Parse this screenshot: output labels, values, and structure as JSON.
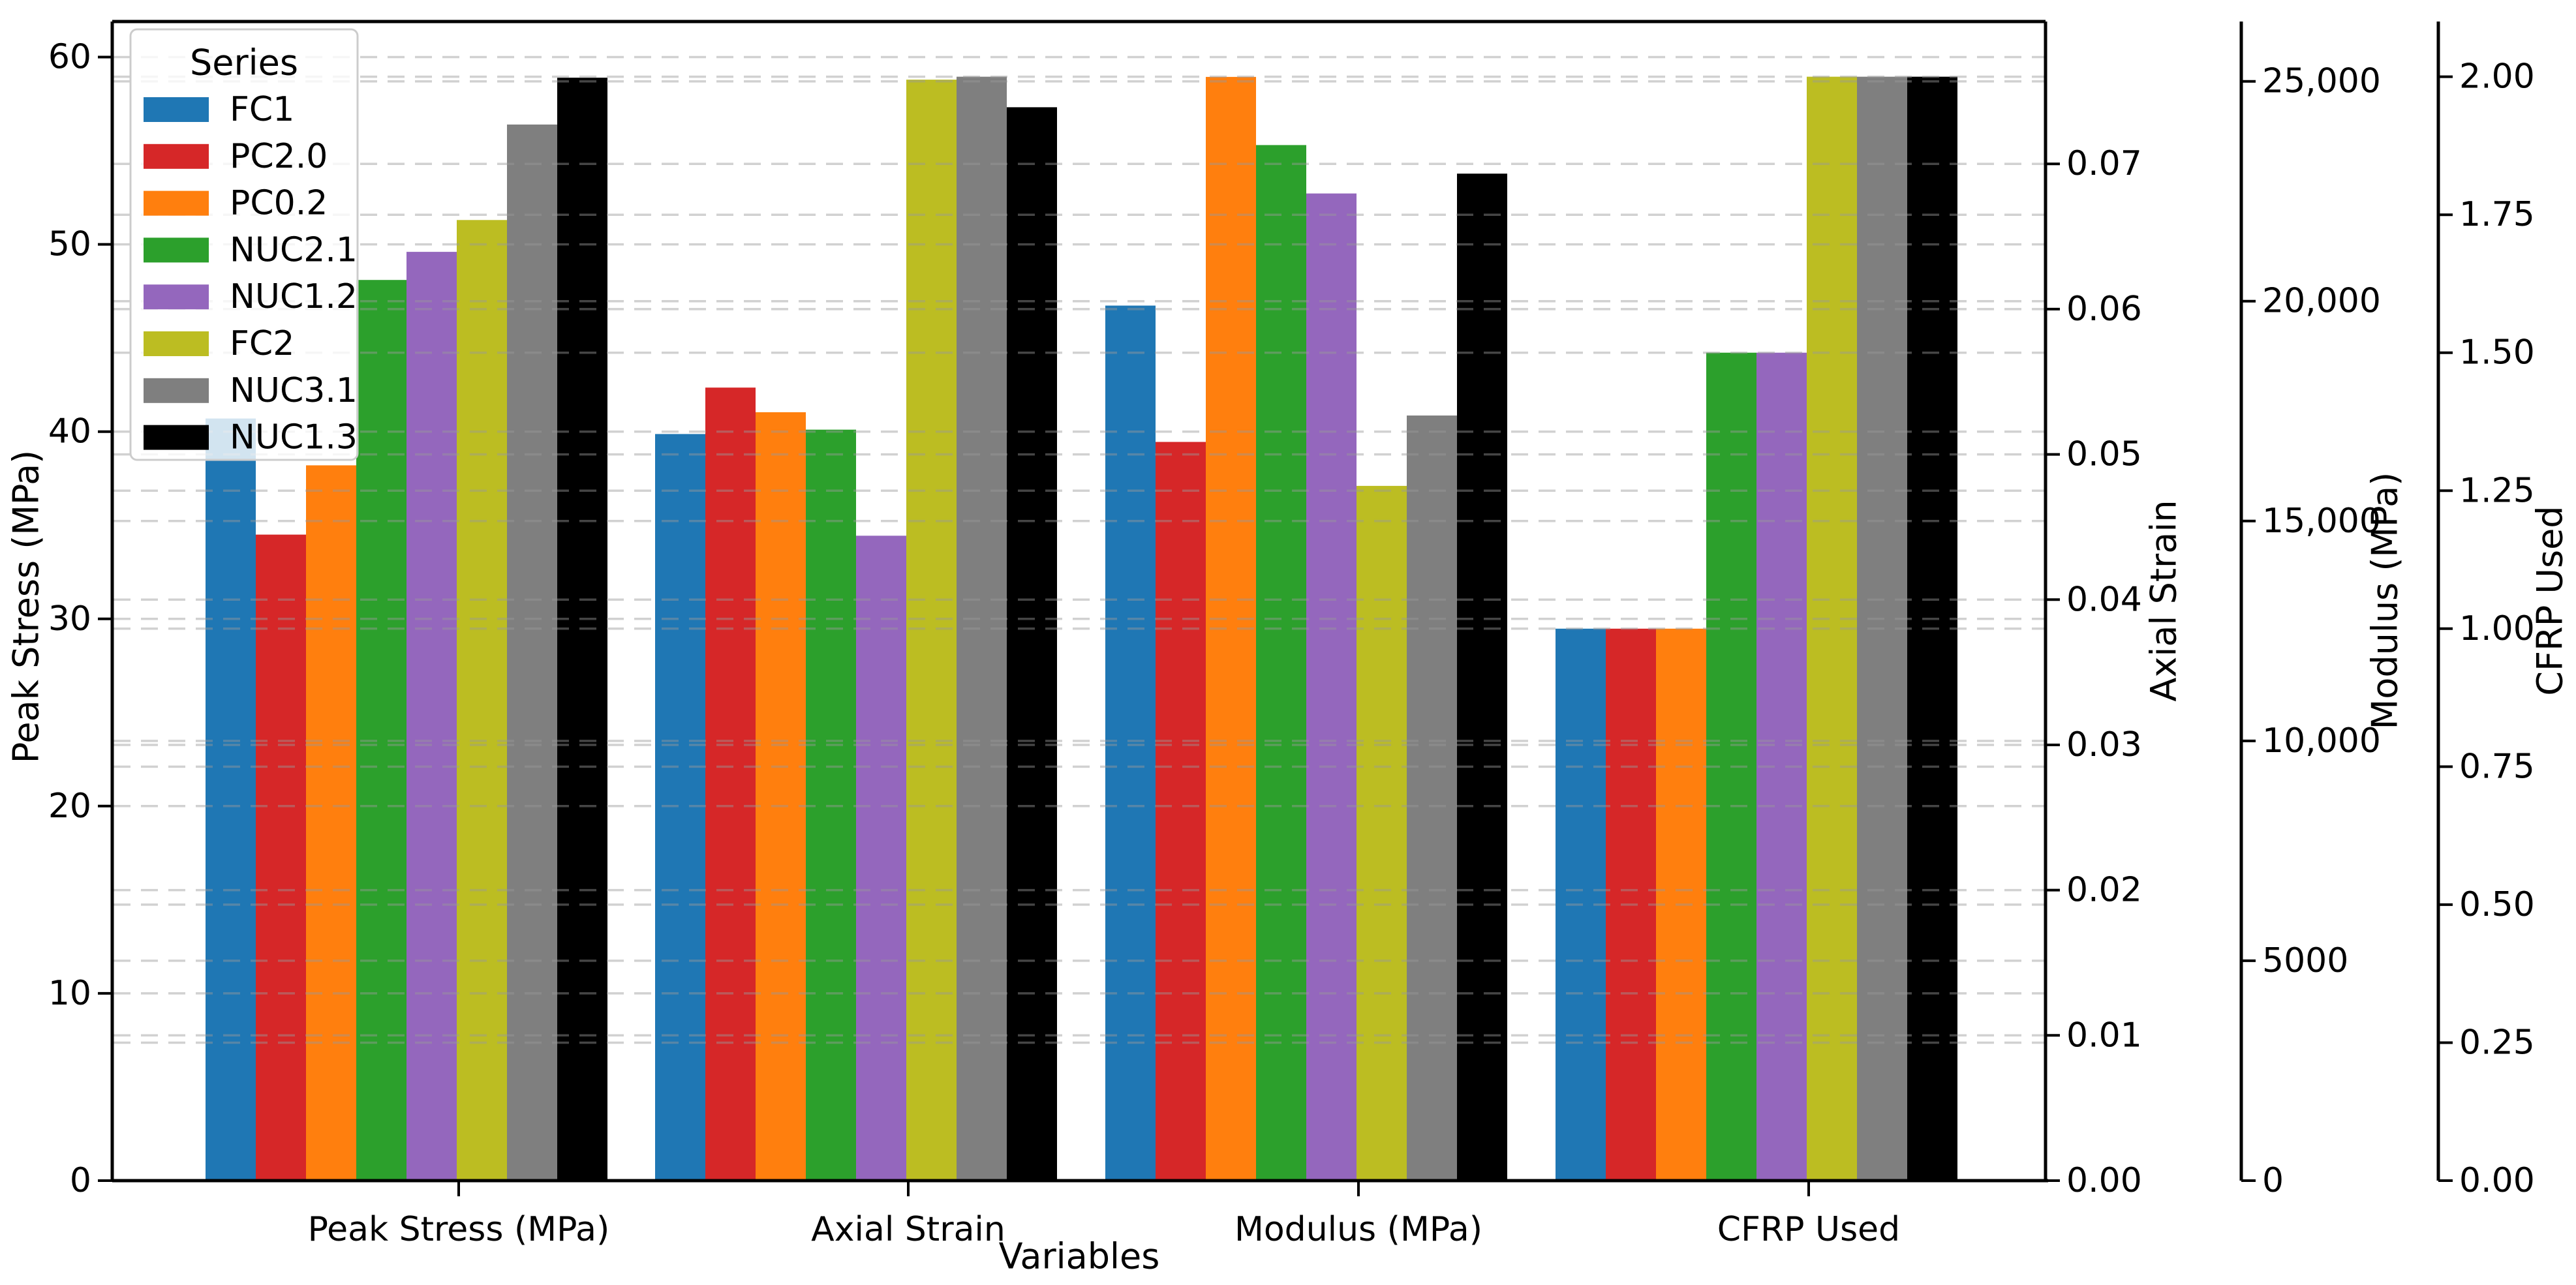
{
  "chart_data": {
    "type": "bar",
    "title": "",
    "xlabel": "Variables",
    "categories": [
      "Peak Stress (MPa)",
      "Axial Strain",
      "Modulus (MPa)",
      "CFRP Used"
    ],
    "grid": {
      "style": "dashed",
      "color": "#bbbbbb",
      "horizontal": true
    },
    "legend": {
      "title": "Series",
      "position": "upper left"
    },
    "axes": [
      {
        "title": "Peak Stress (MPa)",
        "side": "left",
        "applies_to_category": "Peak Stress (MPa)",
        "range": [
          0,
          61.9
        ],
        "ticks": [
          0,
          10,
          20,
          30,
          40,
          50,
          60
        ],
        "tick_labels": [
          "0",
          "10",
          "20",
          "30",
          "40",
          "50",
          "60"
        ]
      },
      {
        "title": "Axial Strain",
        "side": "right-1",
        "applies_to_category": "Axial Strain",
        "range": [
          0,
          0.0798
        ],
        "ticks": [
          0,
          0.01,
          0.02,
          0.03,
          0.04,
          0.05,
          0.06,
          0.07
        ],
        "tick_labels": [
          "0.00",
          "0.01",
          "0.02",
          "0.03",
          "0.04",
          "0.05",
          "0.06",
          "0.07"
        ]
      },
      {
        "title": "Modulus (MPa)",
        "side": "right-2",
        "applies_to_category": "Modulus (MPa)",
        "range": [
          0,
          26360
        ],
        "ticks": [
          0,
          5000,
          10000,
          15000,
          20000,
          25000
        ],
        "tick_labels": [
          "0",
          "5000",
          "10,000",
          "15,000",
          "20,000",
          "25,000"
        ]
      },
      {
        "title": "CFRP Used",
        "side": "right-3",
        "applies_to_category": "CFRP Used",
        "range": [
          0,
          2.1
        ],
        "ticks": [
          0,
          0.25,
          0.5,
          0.75,
          1.0,
          1.25,
          1.5,
          1.75,
          2.0
        ],
        "tick_labels": [
          "0.00",
          "0.25",
          "0.50",
          "0.75",
          "1.00",
          "1.25",
          "1.50",
          "1.75",
          "2.00"
        ]
      }
    ],
    "series": [
      {
        "name": "FC1",
        "color": "#1f77b4",
        "values": [
          40.7,
          0.0514,
          19900,
          1.0
        ]
      },
      {
        "name": "PC2.0",
        "color": "#d62728",
        "values": [
          34.5,
          0.0546,
          16800,
          1.0
        ]
      },
      {
        "name": "PC0.2",
        "color": "#ff7f0e",
        "values": [
          38.2,
          0.0529,
          25100,
          1.0
        ]
      },
      {
        "name": "NUC2.1",
        "color": "#2ca02c",
        "values": [
          48.1,
          0.0517,
          23550,
          1.5
        ]
      },
      {
        "name": "NUC1.2",
        "color": "#9467bd",
        "values": [
          49.6,
          0.0444,
          22450,
          1.5
        ]
      },
      {
        "name": "FC2",
        "color": "#bcbd22",
        "values": [
          51.3,
          0.0758,
          15800,
          2.0
        ]
      },
      {
        "name": "NUC3.1",
        "color": "#7f7f7f",
        "values": [
          56.4,
          0.076,
          17400,
          2.0
        ]
      },
      {
        "name": "NUC1.3",
        "color": "#000000",
        "values": [
          58.9,
          0.0739,
          22900,
          2.0
        ]
      }
    ]
  }
}
